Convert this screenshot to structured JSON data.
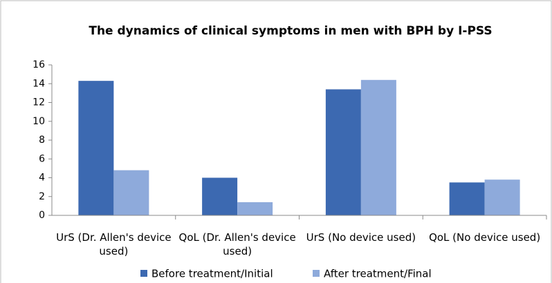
{
  "chart_data": {
    "type": "bar",
    "title": "The dynamics of clinical symptoms in men with BPH by I-PSS",
    "categories": [
      "UrS (Dr. Allen's device used)",
      "QoL (Dr. Allen's device used)",
      "UrS (No device used)",
      "QoL (No device used)"
    ],
    "series": [
      {
        "name": "Before treatment/Initial",
        "color": "#3c69b1",
        "values": [
          14.3,
          4.0,
          13.4,
          3.5
        ]
      },
      {
        "name": "After treatment/Final",
        "color": "#8eaadb",
        "values": [
          4.8,
          1.4,
          14.4,
          3.8
        ]
      }
    ],
    "ylim": [
      0,
      16
    ],
    "yticks": [
      0,
      2,
      4,
      6,
      8,
      10,
      12,
      14,
      16
    ],
    "grid": false,
    "legend": "bottom"
  }
}
